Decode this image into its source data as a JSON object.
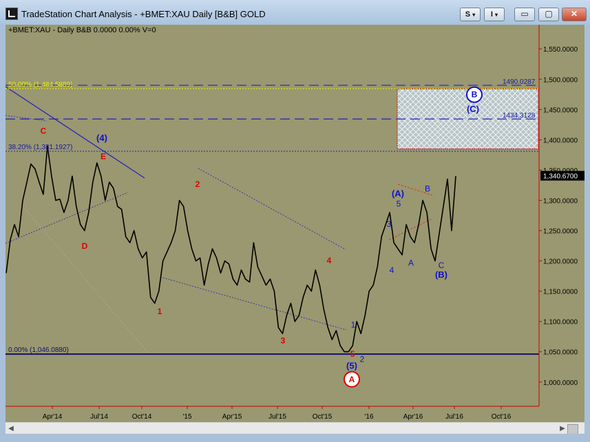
{
  "window": {
    "title": "TradeStation Chart Analysis - +BMET:XAU Daily [B&B] GOLD",
    "style_button": "S",
    "info_button": "I",
    "minimize_glyph": "▭",
    "maximize_glyph": "▢",
    "close_glyph": "✕"
  },
  "chart_header": "+BMET:XAU - Daily  B&B  0.0000  0.00%  V=0",
  "colors": {
    "chart_bg": "#999870",
    "price_line": "#000000",
    "wave_red": "#e00000",
    "wave_blue": "#1010d0",
    "fib_yellow": "#f0f000",
    "guide_blue": "#2020c0"
  },
  "chart_data": {
    "type": "line",
    "title": "",
    "ylim": [
      960,
      1590
    ],
    "y_ticks": [
      "1,550.0000",
      "1,500.0000",
      "1,450.0000",
      "1,400.0000",
      "1,350.0000",
      "1,300.0000",
      "1,250.0000",
      "1,200.0000",
      "1,150.0000",
      "1,100.0000",
      "1,050.0000",
      "1,000.0000"
    ],
    "y_tick_values": [
      1550,
      1500,
      1450,
      1400,
      1350,
      1300,
      1250,
      1200,
      1150,
      1100,
      1050,
      1000
    ],
    "x_ticks": [
      "Apr'14",
      "Jul'14",
      "Oct'14",
      "'15",
      "Apr'15",
      "Jul'15",
      "Oct'15",
      "'16",
      "Apr'16",
      "Jul'16",
      "Oct'16"
    ],
    "last_price_label": "1,340.6700",
    "last_price": 1340.67,
    "series": [
      {
        "values": [
          1180,
          1235,
          1260,
          1240,
          1300,
          1330,
          1360,
          1352,
          1330,
          1310,
          1390,
          1340,
          1300,
          1302,
          1280,
          1300,
          1340,
          1290,
          1260,
          1250,
          1280,
          1330,
          1362,
          1340,
          1300,
          1330,
          1320,
          1290,
          1285,
          1240,
          1230,
          1250,
          1220,
          1205,
          1215,
          1140,
          1130,
          1150,
          1200,
          1215,
          1230,
          1250,
          1300,
          1290,
          1250,
          1220,
          1200,
          1205,
          1160,
          1195,
          1220,
          1205,
          1180,
          1200,
          1195,
          1170,
          1160,
          1185,
          1170,
          1165,
          1230,
          1190,
          1175,
          1160,
          1170,
          1150,
          1090,
          1080,
          1110,
          1130,
          1100,
          1110,
          1140,
          1160,
          1150,
          1185,
          1160,
          1120,
          1090,
          1070,
          1085,
          1060,
          1050,
          1050,
          1060,
          1100,
          1080,
          1110,
          1150,
          1160,
          1190,
          1240,
          1260,
          1280,
          1230,
          1220,
          1210,
          1260,
          1240,
          1230,
          1260,
          1300,
          1280,
          1220,
          1200,
          1245,
          1290,
          1335,
          1250,
          1340
        ]
      }
    ],
    "fib_levels": [
      {
        "label": "50.00% (1,484.5889)",
        "value": 1484.5889,
        "style": "yellow-dotted"
      },
      {
        "label": "38.20% (1,381.1927)",
        "value": 1381.1927,
        "style": "blue-dotted"
      },
      {
        "label": "0.00% (1,046.0880)",
        "value": 1046.088,
        "style": "navy-solid"
      }
    ],
    "hlines": [
      {
        "label": "1490.0287",
        "value": 1490.0287
      },
      {
        "label": "1434.3128",
        "value": 1434.3128
      }
    ],
    "target_box": {
      "y_top": 1484,
      "y_bottom": 1385
    },
    "wave_labels": [
      {
        "text": "C",
        "color": "red",
        "price": 1410
      },
      {
        "text": "E",
        "color": "red",
        "price": 1368
      },
      {
        "text": "D",
        "color": "red",
        "price": 1220
      },
      {
        "text": "(4)",
        "color": "blue",
        "price": 1398
      },
      {
        "text": "2",
        "color": "red",
        "price": 1322
      },
      {
        "text": "1",
        "color": "red",
        "price": 1112
      },
      {
        "text": "3",
        "color": "red",
        "price": 1064
      },
      {
        "text": "4",
        "color": "red",
        "price": 1196
      },
      {
        "text": "5",
        "color": "red",
        "price": 1042
      },
      {
        "text": "1",
        "color": "blue",
        "price": 1090
      },
      {
        "text": "2",
        "color": "blue",
        "price": 1033
      },
      {
        "text": "(5)",
        "color": "blue",
        "price": 1022
      },
      {
        "text": "A",
        "color": "red-circled",
        "price": 1000
      },
      {
        "text": "3",
        "color": "blue",
        "price": 1256
      },
      {
        "text": "4",
        "color": "blue",
        "price": 1180
      },
      {
        "text": "(A)",
        "color": "blue",
        "price": 1306
      },
      {
        "text": "5",
        "color": "blue",
        "price": 1290
      },
      {
        "text": "A",
        "color": "blue",
        "price": 1192
      },
      {
        "text": "B",
        "color": "blue",
        "price": 1315
      },
      {
        "text": "C",
        "color": "blue",
        "price": 1188
      },
      {
        "text": "(B)",
        "color": "blue",
        "price": 1172
      },
      {
        "text": "B",
        "color": "blue-circled",
        "price": 1470
      },
      {
        "text": "(C)",
        "color": "blue",
        "price": 1446
      }
    ]
  }
}
